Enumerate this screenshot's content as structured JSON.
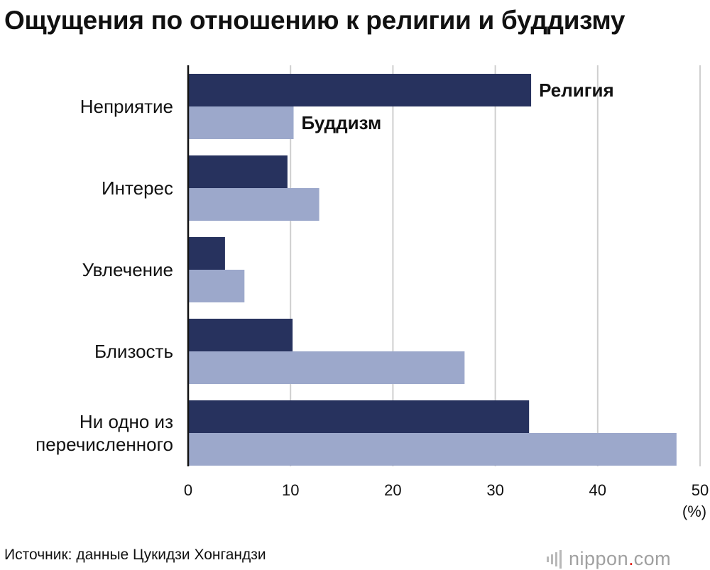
{
  "title": "Ощущения по отношению к религии и буддизму",
  "source": "Источник: данные Цукидзи Хонгандзи",
  "logo": {
    "name": "nippon",
    "dot": ".",
    "tld": "com"
  },
  "chart_data": {
    "type": "bar",
    "orientation": "horizontal",
    "categories": [
      "Неприятие",
      "Интерес",
      "Увлечение",
      "Близость",
      "Ни одно из перечисленного"
    ],
    "category_lines": [
      [
        "Неприятие"
      ],
      [
        "Интерес"
      ],
      [
        "Увлечение"
      ],
      [
        "Близость"
      ],
      [
        "Ни одно из",
        "перечисленного"
      ]
    ],
    "series": [
      {
        "name": "Религия",
        "values": [
          33.5,
          9.7,
          3.6,
          10.2,
          33.3
        ],
        "color": "#27325e"
      },
      {
        "name": "Буддизм",
        "values": [
          10.3,
          12.8,
          5.5,
          27.0,
          47.7
        ],
        "color": "#9ca8cb"
      }
    ],
    "xlim": [
      0,
      50
    ],
    "xticks": [
      0,
      10,
      20,
      30,
      40,
      50
    ],
    "unit_label": "(%)",
    "grid": true,
    "legend": "inline labels beside first category bars"
  }
}
